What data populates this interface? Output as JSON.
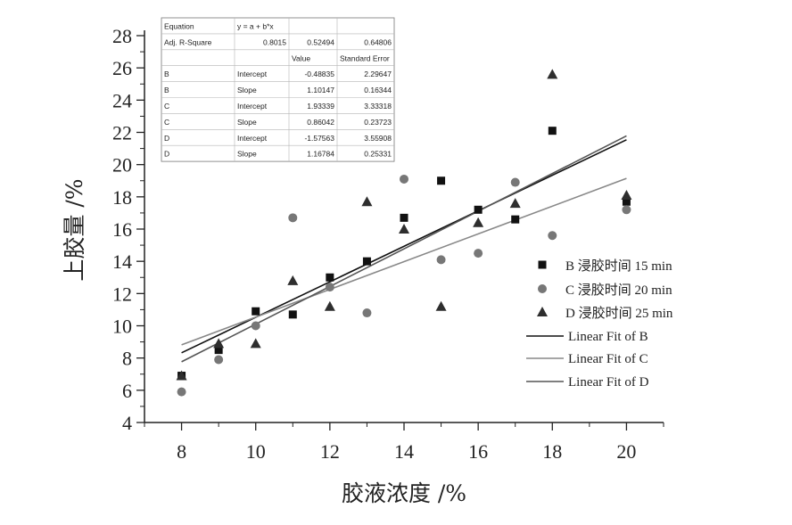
{
  "colors": {
    "series_B": "#111111",
    "series_C": "#777777",
    "series_D": "#2e2e2e",
    "fit_B": "#111111",
    "fit_C": "#888888",
    "fit_D": "#555555",
    "axis": "#222222"
  },
  "stats_table": {
    "rows": [
      [
        "Equation",
        "y = a + b*x",
        "",
        ""
      ],
      [
        "Adj. R-Square",
        "0.8015",
        "0.52494",
        "0.64806"
      ],
      [
        "",
        "",
        "Value",
        "Standard Error"
      ],
      [
        "B",
        "Intercept",
        "-0.48835",
        "2.29647"
      ],
      [
        "B",
        "Slope",
        "1.10147",
        "0.16344"
      ],
      [
        "C",
        "Intercept",
        "1.93339",
        "3.33318"
      ],
      [
        "C",
        "Slope",
        "0.86042",
        "0.23723"
      ],
      [
        "D",
        "Intercept",
        "-1.57563",
        "3.55908"
      ],
      [
        "D",
        "Slope",
        "1.16784",
        "0.25331"
      ]
    ]
  },
  "chart_data": {
    "type": "scatter",
    "xlabel": "胶液浓度 /%",
    "ylabel": "上胶量 /%",
    "xlim": [
      7,
      21
    ],
    "ylim": [
      4,
      28
    ],
    "x_ticks": [
      8,
      10,
      12,
      14,
      16,
      18,
      20
    ],
    "y_ticks": [
      4,
      6,
      8,
      10,
      12,
      14,
      16,
      18,
      20,
      22,
      24,
      26,
      28
    ],
    "grid": false,
    "legend_position": "right",
    "series": [
      {
        "name": "B 浸胶时间 15 min",
        "marker": "square",
        "x": [
          8,
          9,
          10,
          11,
          12,
          13,
          14,
          15,
          16,
          17,
          18,
          20
        ],
        "y": [
          6.9,
          8.5,
          10.9,
          10.7,
          13.0,
          14.0,
          16.7,
          19.0,
          17.2,
          16.6,
          22.1,
          17.7
        ]
      },
      {
        "name": "C 浸胶时间 20 min",
        "marker": "circle",
        "x": [
          8,
          9,
          10,
          11,
          12,
          13,
          14,
          15,
          16,
          17,
          18,
          20
        ],
        "y": [
          5.9,
          7.9,
          10.0,
          16.7,
          12.4,
          10.8,
          19.1,
          14.1,
          14.5,
          18.9,
          15.6,
          17.2
        ]
      },
      {
        "name": "D 浸胶时间 25 min",
        "marker": "triangle",
        "x": [
          8,
          9,
          10,
          11,
          12,
          13,
          14,
          15,
          16,
          17,
          18,
          20
        ],
        "y": [
          6.9,
          8.9,
          8.9,
          12.8,
          11.2,
          17.7,
          16.0,
          11.2,
          16.4,
          17.6,
          25.6,
          18.1
        ]
      }
    ],
    "fits": [
      {
        "name": "Linear Fit of B",
        "intercept": -0.48835,
        "slope": 1.10147,
        "x_range": [
          8,
          20
        ]
      },
      {
        "name": "Linear Fit of C",
        "intercept": 1.93339,
        "slope": 0.86042,
        "x_range": [
          8,
          20
        ]
      },
      {
        "name": "Linear Fit of D",
        "intercept": -1.57563,
        "slope": 1.16784,
        "x_range": [
          8,
          20
        ]
      }
    ]
  }
}
